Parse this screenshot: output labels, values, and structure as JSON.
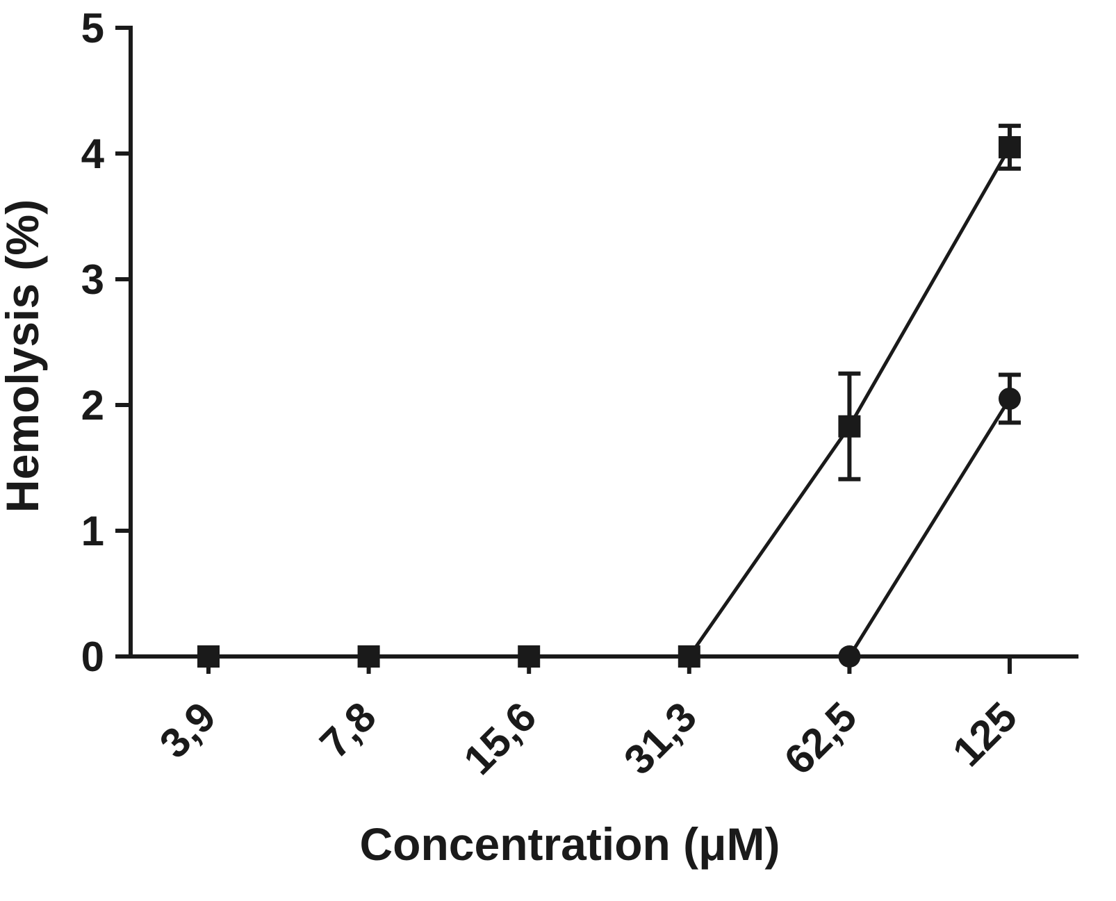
{
  "chart_data": {
    "type": "line",
    "xlabel": "Concentration (μM)",
    "ylabel": "Hemolysis (%)",
    "categories": [
      "3,9",
      "7,8",
      "15,6",
      "31,3",
      "62,5",
      "125"
    ],
    "ylim": [
      0,
      5
    ],
    "yticks": [
      "0",
      "1",
      "2",
      "3",
      "4",
      "5"
    ],
    "grid": false,
    "series": [
      {
        "marker": "square",
        "values": [
          0,
          0,
          0,
          0,
          1.83,
          4.05
        ],
        "errors": [
          0,
          0,
          0,
          0,
          0.42,
          0.17
        ]
      },
      {
        "marker": "circle",
        "values": [
          null,
          null,
          null,
          null,
          0,
          2.05
        ],
        "errors": [
          null,
          null,
          null,
          null,
          0,
          0.19
        ]
      }
    ]
  }
}
